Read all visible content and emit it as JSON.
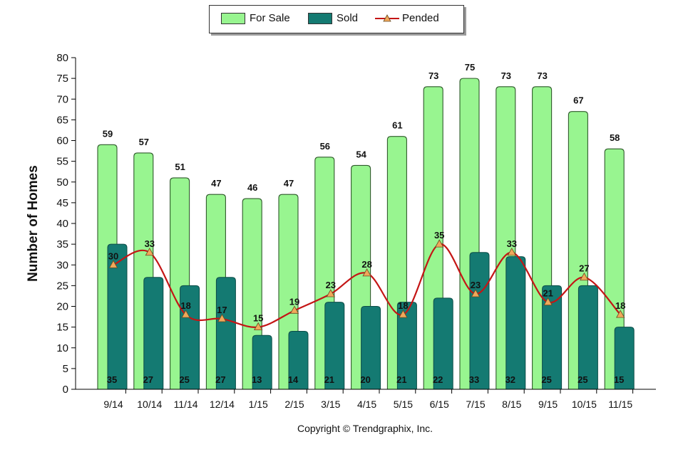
{
  "legend": {
    "for_sale": "For Sale",
    "sold": "Sold",
    "pended": "Pended"
  },
  "copyright": "Copyright © Trendgraphix, Inc.",
  "colors": {
    "for_sale": "#98f590",
    "sold": "#147a72",
    "pended_line": "#c41515",
    "pended_marker": "#f0a85a",
    "axis": "#000000"
  },
  "chart_data": {
    "type": "bar",
    "ylabel": "Number of Homes",
    "xlabel": "",
    "ylim": [
      0,
      80
    ],
    "yticks": [
      0,
      5,
      10,
      15,
      20,
      25,
      30,
      35,
      40,
      45,
      50,
      55,
      60,
      65,
      70,
      75,
      80
    ],
    "grid": false,
    "legend_position": "top",
    "categories": [
      "9/14",
      "10/14",
      "11/14",
      "12/14",
      "1/15",
      "2/15",
      "3/15",
      "4/15",
      "5/15",
      "6/15",
      "7/15",
      "8/15",
      "9/15",
      "10/15",
      "11/15"
    ],
    "series": [
      {
        "name": "For Sale",
        "type": "bar",
        "values": [
          59,
          57,
          51,
          47,
          46,
          47,
          56,
          54,
          61,
          73,
          75,
          73,
          73,
          67,
          58
        ]
      },
      {
        "name": "Sold",
        "type": "bar",
        "values": [
          35,
          27,
          25,
          27,
          13,
          14,
          21,
          20,
          21,
          22,
          33,
          32,
          25,
          25,
          15
        ]
      },
      {
        "name": "Pended",
        "type": "line",
        "values": [
          30,
          33,
          18,
          17,
          15,
          19,
          23,
          28,
          18,
          35,
          23,
          33,
          21,
          27,
          18
        ]
      }
    ]
  }
}
